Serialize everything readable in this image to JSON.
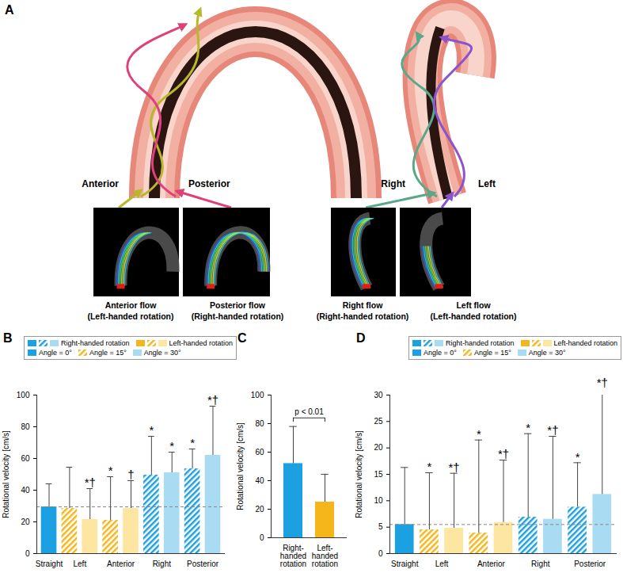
{
  "diagram": {
    "panel": "A",
    "views": [
      {
        "labels": [
          "Anterior",
          "Posterior"
        ]
      },
      {
        "labels": [
          "Right",
          "Left"
        ]
      }
    ],
    "images": [
      {
        "title": "Anterior flow",
        "subtitle": "(Left-handed rotation)"
      },
      {
        "title": "Posterior flow",
        "subtitle": "(Right-handed rotation)"
      },
      {
        "title": "Right flow",
        "subtitle": "(Right-handed rotation)"
      },
      {
        "title": "Left flow",
        "subtitle": "(Left-handed rotation)"
      }
    ]
  },
  "chart_data": [
    {
      "type": "bar",
      "panel": "B",
      "y_label": "Rotational velocity [cm/s]",
      "categories": [
        "Straight",
        "Left",
        "Anterior",
        "Right",
        "Posterior"
      ],
      "series": [
        {
          "name": "Angle = 0°",
          "color": "#1ba1e2",
          "line_style": "solid",
          "values": [
            29.5,
            null,
            null,
            null,
            null
          ],
          "errors": [
            14.5,
            null,
            null,
            null,
            null
          ],
          "significance": [
            null,
            null,
            null,
            null,
            null
          ],
          "colors": [
            "#1ba1e2",
            null,
            null,
            null,
            null
          ]
        },
        {
          "name": "Angle = 15°",
          "color": "#f5b61c",
          "line_style": "hatched",
          "values": [
            null,
            28.5,
            21,
            49.5,
            53.5
          ],
          "errors": [
            null,
            26,
            27.5,
            24.5,
            12.5
          ],
          "significance": [
            null,
            null,
            "*",
            "*",
            "*"
          ],
          "colors": [
            null,
            "#f5b61c",
            "#f5b61c",
            "#1ba1e2",
            "#1ba1e2"
          ]
        },
        {
          "name": "Angle = 30°",
          "color": "#a9dcf2",
          "line_style": "solid",
          "values": [
            null,
            21.5,
            28.5,
            51,
            62
          ],
          "errors": [
            null,
            19.5,
            17.5,
            13,
            31
          ],
          "significance": [
            null,
            "*†",
            "†",
            "*",
            "*†"
          ],
          "colors": [
            null,
            "#fde6a2",
            "#fde6a2",
            "#a9dcf2",
            "#a9dcf2"
          ]
        }
      ],
      "rotation_legend": [
        {
          "name": "Right-handed rotation",
          "colors": [
            "#1ba1e2",
            "#1ba1e2",
            "#a9dcf2"
          ]
        },
        {
          "name": "Left-handed rotation",
          "colors": [
            "#f5b61c",
            "#f5b61c",
            "#fde6a2"
          ]
        }
      ],
      "reference_line": 29.5,
      "ylim": [
        0,
        100
      ],
      "yticks": [
        0,
        20,
        40,
        60,
        80,
        100
      ],
      "legend": "top"
    },
    {
      "type": "bar",
      "panel": "C",
      "y_label": "Rotational velocity [cm/s]",
      "categories": [
        "Right-handed rotation",
        "Left-handed rotation"
      ],
      "values": [
        52,
        25
      ],
      "errors": [
        26,
        19.5
      ],
      "colors": [
        "#1ba1e2",
        "#f5b61c"
      ],
      "annotation": "p < 0.01",
      "ylim": [
        0,
        100
      ],
      "yticks": [
        0,
        20,
        40,
        60,
        80,
        100
      ]
    },
    {
      "type": "bar",
      "panel": "D",
      "y_label": "Rotational velocity [cm/s]",
      "categories": [
        "Straight",
        "Left",
        "Anterior",
        "Right",
        "Posterior"
      ],
      "series": [
        {
          "name": "Angle = 0°",
          "color": "#1ba1e2",
          "line_style": "solid",
          "values": [
            5.5,
            null,
            null,
            null,
            null
          ],
          "errors": [
            10.8,
            null,
            null,
            null,
            null
          ],
          "significance": [
            null,
            null,
            null,
            null,
            null
          ],
          "colors": [
            "#1ba1e2",
            null,
            null,
            null,
            null
          ]
        },
        {
          "name": "Angle = 15°",
          "color": "#f5b61c",
          "line_style": "hatched",
          "values": [
            null,
            4.5,
            3.9,
            6.9,
            8.8
          ],
          "errors": [
            null,
            10.8,
            17.6,
            15.8,
            8.4
          ],
          "significance": [
            null,
            "*",
            "*",
            "*",
            "*"
          ],
          "colors": [
            null,
            "#f5b61c",
            "#f5b61c",
            "#1ba1e2",
            "#1ba1e2"
          ]
        },
        {
          "name": "Angle = 30°",
          "color": "#a9dcf2",
          "line_style": "solid",
          "values": [
            null,
            4.8,
            5.9,
            6.5,
            11.2
          ],
          "errors": [
            null,
            10.4,
            11.8,
            15.7,
            20
          ],
          "significance": [
            null,
            "*†",
            "*†",
            "*†",
            "*†"
          ],
          "colors": [
            null,
            "#fde6a2",
            "#fde6a2",
            "#a9dcf2",
            "#a9dcf2"
          ]
        }
      ],
      "rotation_legend": [
        {
          "name": "Right-handed rotation",
          "colors": [
            "#1ba1e2",
            "#1ba1e2",
            "#a9dcf2"
          ]
        },
        {
          "name": "Left-handed rotation",
          "colors": [
            "#f5b61c",
            "#f5b61c",
            "#fde6a2"
          ]
        }
      ],
      "reference_line": 5.5,
      "ylim": [
        0,
        30
      ],
      "yticks": [
        0,
        5,
        10,
        15,
        20,
        25,
        30
      ],
      "legend": "top"
    }
  ]
}
